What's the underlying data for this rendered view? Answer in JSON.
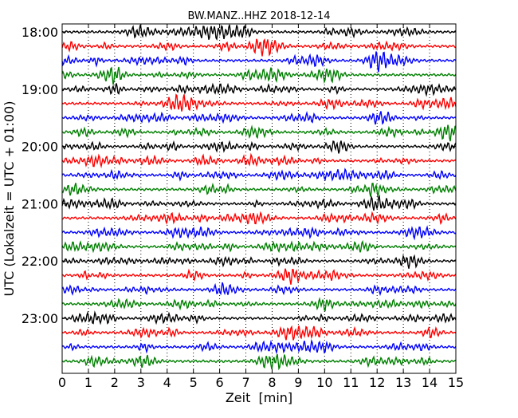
{
  "chart_data": {
    "type": "line",
    "title": "BW.MANZ..HHZ 2018-12-14",
    "xlabel": "Zeit  [min]",
    "ylabel": "UTC (Lokalzeit = UTC + 01:00)",
    "xlim": [
      0,
      15
    ],
    "x_ticks": [
      "0",
      "1",
      "2",
      "3",
      "4",
      "5",
      "6",
      "7",
      "8",
      "9",
      "10",
      "11",
      "12",
      "13",
      "14",
      "15"
    ],
    "y_tick_labels": [
      "18:00",
      "19:00",
      "20:00",
      "21:00",
      "22:00",
      "23:00"
    ],
    "traces_per_hour": 4,
    "trace_count": 24,
    "trace_colors": [
      "#000000",
      "#ff0000",
      "#0000ff",
      "#008000"
    ],
    "vertical_grid": "dotted",
    "legend": "none"
  }
}
